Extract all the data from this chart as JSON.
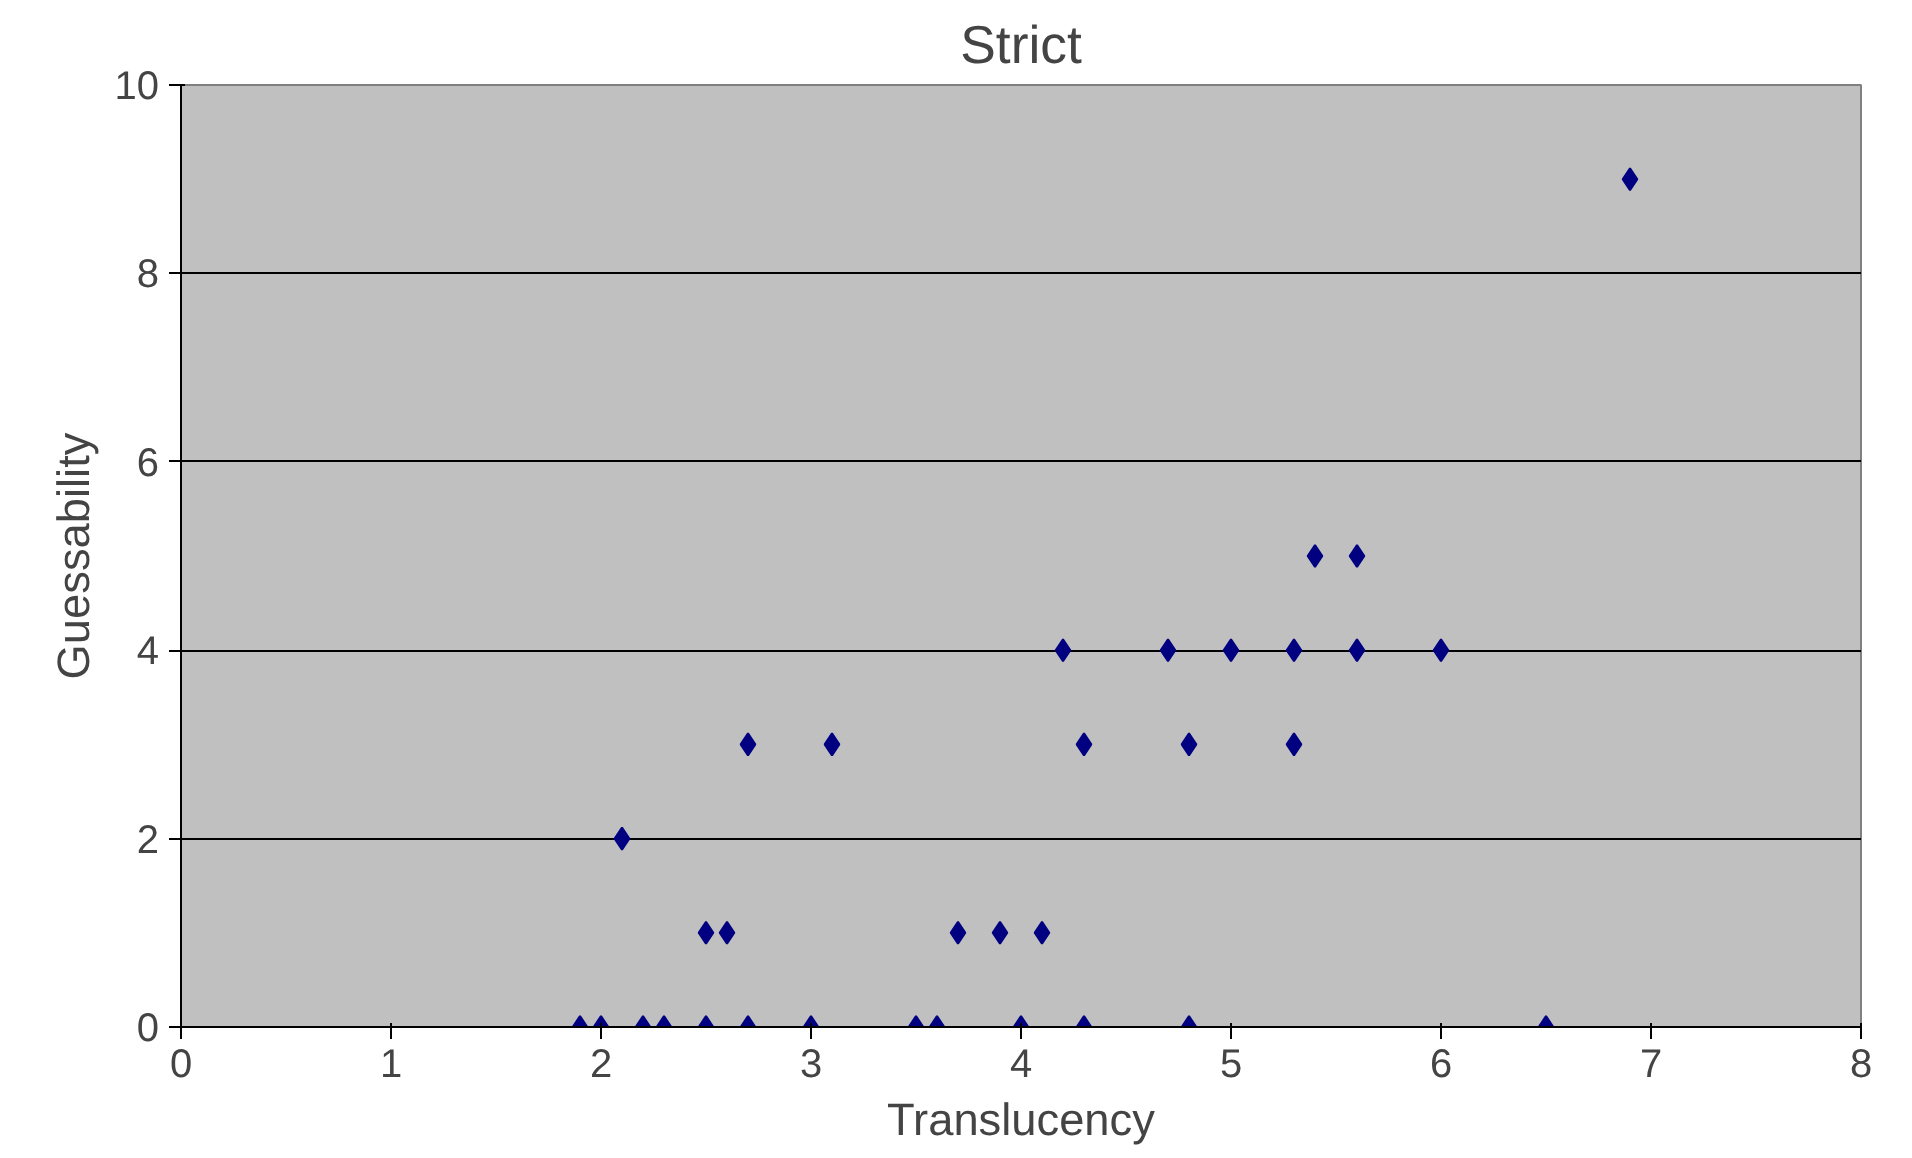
{
  "chart_data": {
    "type": "scatter",
    "title": "Strict",
    "xlabel": "Translucency",
    "ylabel": "Guessability",
    "x": [
      1.9,
      2.0,
      2.1,
      2.2,
      2.3,
      2.5,
      2.5,
      2.6,
      2.7,
      2.7,
      3.0,
      3.1,
      3.5,
      3.6,
      3.7,
      3.9,
      4.0,
      4.1,
      4.2,
      4.3,
      4.3,
      4.7,
      4.8,
      4.8,
      5.0,
      5.3,
      5.3,
      5.4,
      5.6,
      5.6,
      6.0,
      6.5,
      6.9
    ],
    "values": [
      0,
      0,
      2,
      0,
      0,
      1,
      0,
      1,
      3,
      0,
      0,
      3,
      0,
      0,
      1,
      1,
      0,
      1,
      4,
      3,
      0,
      4,
      3,
      0,
      4,
      4,
      3,
      5,
      5,
      4,
      4,
      0,
      9
    ],
    "color": "#000080",
    "marker": "diamond",
    "xlim": [
      0,
      8
    ],
    "ylim": [
      0,
      10
    ],
    "xticks": [
      0,
      1,
      2,
      3,
      4,
      5,
      6,
      7,
      8
    ],
    "yticks": [
      0,
      2,
      4,
      6,
      8,
      10
    ],
    "grid": "y"
  }
}
